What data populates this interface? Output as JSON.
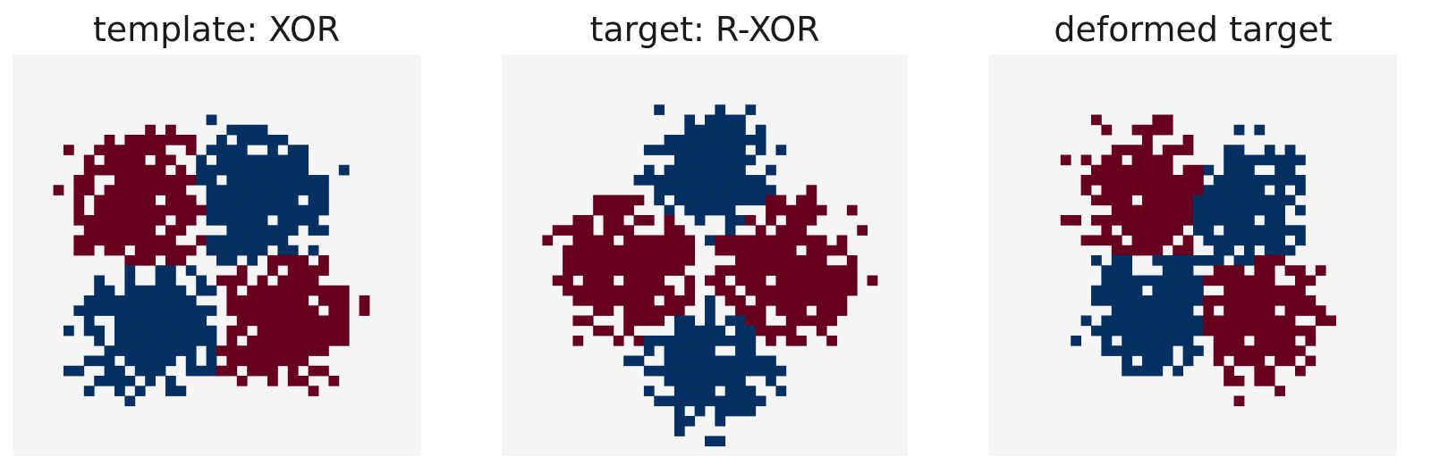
{
  "colors": {
    "background": "#f5f5f5",
    "class_a": "#67001f",
    "class_b": "#053061"
  },
  "chart_data": [
    {
      "type": "heatmap",
      "title": "template: XOR",
      "grid": false,
      "grid_size": [
        40,
        40
      ],
      "blobs": [
        {
          "class": "class_a",
          "center": [
            13.0,
            15.0
          ],
          "radius": 7.2
        },
        {
          "class": "class_b",
          "center": [
            24.0,
            14.5
          ],
          "radius": 7.2
        },
        {
          "class": "class_b",
          "center": [
            13.5,
            27.0
          ],
          "radius": 7.2
        },
        {
          "class": "class_a",
          "center": [
            26.0,
            26.5
          ],
          "radius": 7.2
        }
      ],
      "density": 0.86,
      "seed": 11
    },
    {
      "type": "heatmap",
      "title": "target: R-XOR",
      "grid": false,
      "grid_size": [
        40,
        40
      ],
      "blobs": [
        {
          "class": "class_b",
          "center": [
            20.5,
            12.0
          ],
          "radius": 6.6
        },
        {
          "class": "class_a",
          "center": [
            12.0,
            21.5
          ],
          "radius": 7.4
        },
        {
          "class": "class_a",
          "center": [
            28.0,
            21.5
          ],
          "radius": 7.4
        },
        {
          "class": "class_b",
          "center": [
            20.5,
            31.0
          ],
          "radius": 6.6
        }
      ],
      "density": 0.86,
      "seed": 23
    },
    {
      "type": "heatmap",
      "title": "deformed target",
      "grid": false,
      "grid_size": [
        40,
        40
      ],
      "blobs": [
        {
          "class": "class_a",
          "center": [
            15.5,
            14.0
          ],
          "radius": 7.0
        },
        {
          "class": "class_b",
          "center": [
            25.0,
            15.5
          ],
          "radius": 6.6
        },
        {
          "class": "class_b",
          "center": [
            16.0,
            25.5
          ],
          "radius": 6.8
        },
        {
          "class": "class_a",
          "center": [
            26.0,
            26.0
          ],
          "radius": 7.0
        }
      ],
      "density": 0.86,
      "seed": 37
    }
  ]
}
